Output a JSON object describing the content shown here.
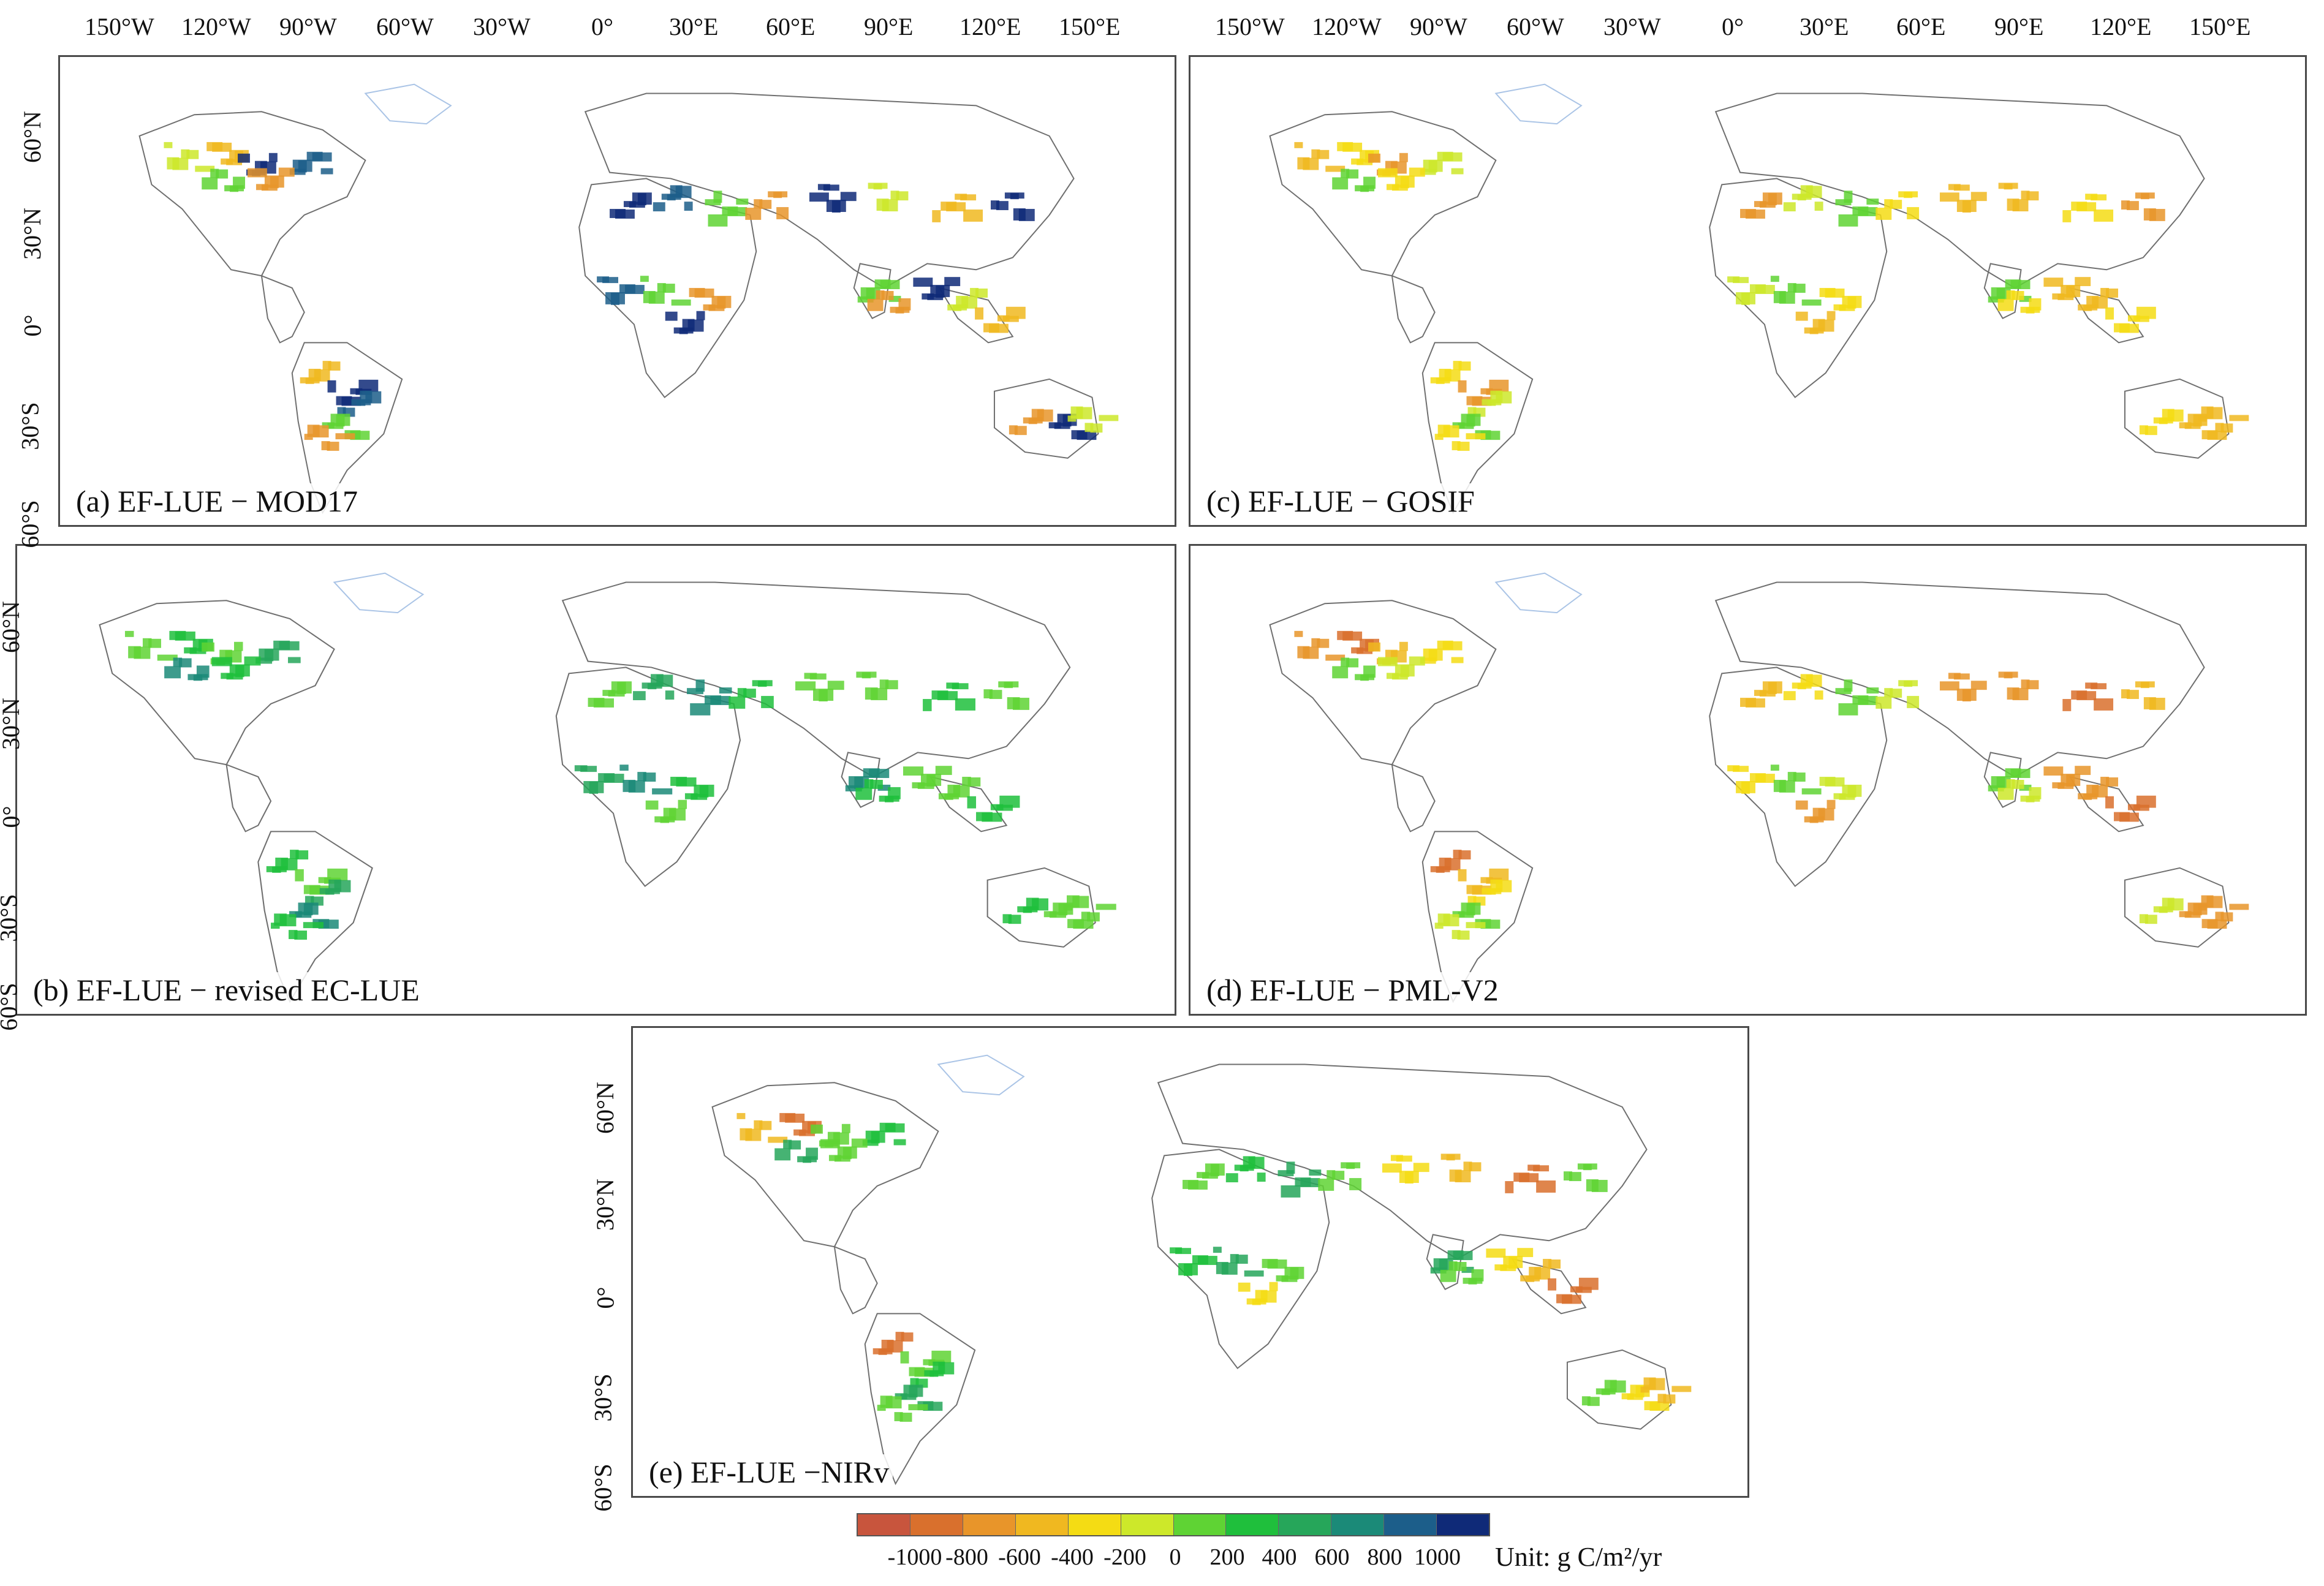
{
  "x_ticks": [
    "150°W",
    "120°W",
    "90°W",
    "60°W",
    "30°W",
    "0°",
    "30°E",
    "60°E",
    "90°E",
    "120°E",
    "150°E"
  ],
  "y_ticks": [
    "60°N",
    "30°N",
    "0°",
    "30°S",
    "60°S"
  ],
  "panels": [
    {
      "id": "a",
      "title": "(a) EF-LUE − MOD17"
    },
    {
      "id": "b",
      "title": "(b) EF-LUE − revised EC-LUE"
    },
    {
      "id": "c",
      "title": "(c) EF-LUE − GOSIF"
    },
    {
      "id": "d",
      "title": "(d) EF-LUE − PML-V2"
    },
    {
      "id": "e",
      "title": "(e) EF-LUE −NIRv"
    }
  ],
  "legend": {
    "colors": [
      "#c8553d",
      "#d9702d",
      "#e8952a",
      "#f0b820",
      "#f4dc14",
      "#cde82a",
      "#5fd334",
      "#1fbf3c",
      "#26a65a",
      "#1b8a78",
      "#1c5e8a",
      "#0f2a78"
    ],
    "labels": [
      "-1000",
      "-800",
      "-600",
      "-400",
      "-200",
      "0",
      "200",
      "400",
      "600",
      "800",
      "1000"
    ],
    "unit": "Unit: g C/m²/yr"
  },
  "colors": {
    "coast": "#aac4e6",
    "border": "#6f6f6f",
    "frame": "#4a4a4a"
  }
}
